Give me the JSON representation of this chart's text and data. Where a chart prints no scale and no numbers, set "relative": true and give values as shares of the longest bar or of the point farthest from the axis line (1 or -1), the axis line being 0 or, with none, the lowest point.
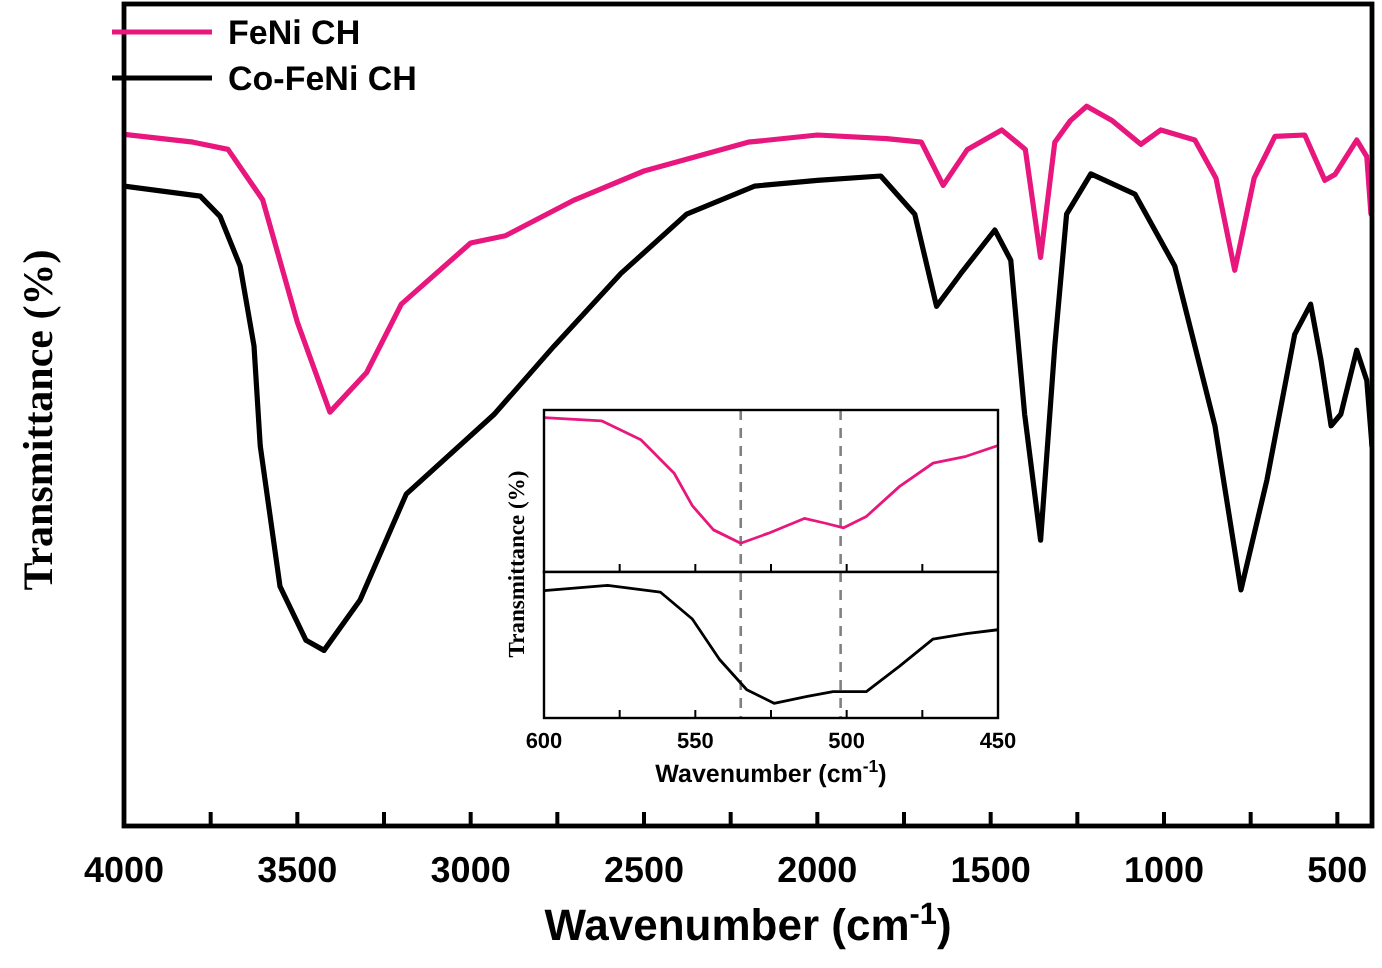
{
  "chart_data": [
    {
      "type": "line",
      "xlabel": "Wavenumber (cm$^{-1}$)",
      "ylabel": "Transmittance (%)",
      "relative": true,
      "legend": "top left",
      "tick_labels": "x",
      "xlim": [
        4000,
        400
      ],
      "xticks": [
        4000,
        {
          "value": 3750,
          "label": null
        },
        3500,
        {
          "value": 3250,
          "label": null
        },
        3000,
        {
          "value": 2750,
          "label": null
        },
        2500,
        {
          "value": 2250,
          "label": null
        },
        2000,
        {
          "value": 1750,
          "label": null
        },
        1500,
        {
          "value": 1250,
          "label": null
        },
        1000,
        {
          "value": 750,
          "label": null
        },
        500
      ],
      "series": [
        {
          "name": "FeNi CH",
          "color": "#e8177e",
          "x": [
            4000,
            3800,
            3700,
            3600,
            3500,
            3406,
            3300,
            3200,
            3000,
            2900,
            2700,
            2500,
            2200,
            2000,
            1800,
            1700,
            1637,
            1567,
            1468,
            1400,
            1356,
            1315,
            1270,
            1223,
            1150,
            1067,
            1009,
            911,
            850,
            796,
            740,
            680,
            594,
            536,
            507,
            444,
            415,
            403
          ],
          "values": [
            0.961,
            0.95,
            0.94,
            0.87,
            0.7,
            0.575,
            0.63,
            0.725,
            0.81,
            0.82,
            0.87,
            0.91,
            0.95,
            0.96,
            0.955,
            0.95,
            0.89,
            0.94,
            0.967,
            0.94,
            0.79,
            0.95,
            0.98,
            1.0,
            0.98,
            0.947,
            0.967,
            0.953,
            0.9,
            0.772,
            0.9,
            0.958,
            0.96,
            0.897,
            0.905,
            0.953,
            0.93,
            0.85
          ]
        },
        {
          "name": "Co-FeNi CH",
          "color": "#000000",
          "x": [
            4000,
            3780,
            3723,
            3665,
            3625,
            3607,
            3550,
            3475,
            3423,
            3319,
            3186,
            2932,
            2759,
            2568,
            2377,
            2181,
            2000,
            1817,
            1719,
            1656,
            1587,
            1488,
            1442,
            1402,
            1356,
            1315,
            1281,
            1211,
            1084,
            969,
            853,
            778,
            703,
            623,
            577,
            547,
            518,
            490,
            444,
            415,
            400
          ],
          "values": [
            0.889,
            0.875,
            0.847,
            0.778,
            0.667,
            0.528,
            0.333,
            0.258,
            0.244,
            0.314,
            0.461,
            0.572,
            0.667,
            0.767,
            0.85,
            0.889,
            0.897,
            0.903,
            0.85,
            0.722,
            0.767,
            0.828,
            0.786,
            0.572,
            0.397,
            0.667,
            0.85,
            0.906,
            0.878,
            0.778,
            0.556,
            0.328,
            0.481,
            0.683,
            0.725,
            0.647,
            0.556,
            0.572,
            0.661,
            0.619,
            0.528
          ]
        }
      ]
    },
    {
      "type": "line",
      "ylabel": "Transmittance (%)",
      "relative": true,
      "tick_labels": false,
      "xlim": [
        600,
        450
      ],
      "xticks": [
        600,
        {
          "value": 575,
          "label": null
        },
        550,
        {
          "value": 525,
          "label": null
        },
        500,
        {
          "value": 475,
          "label": null
        },
        450
      ],
      "ref_lines": [
        {
          "axis": "x",
          "value": 535,
          "color": "#808080",
          "line_style": "dashed"
        },
        {
          "axis": "x",
          "value": 502,
          "color": "#808080",
          "line_style": "dashed"
        }
      ],
      "series": [
        {
          "color": "#e8177e",
          "x": [
            600,
            581,
            568,
            557,
            551,
            544,
            535,
            526,
            514,
            507,
            501,
            493.5,
            482.5,
            471.5,
            460.5,
            450
          ],
          "values": [
            1.0,
            0.98,
            0.857,
            0.64,
            0.43,
            0.273,
            0.186,
            0.25,
            0.347,
            0.316,
            0.286,
            0.36,
            0.555,
            0.705,
            0.75,
            0.82
          ]
        }
      ]
    },
    {
      "type": "line",
      "xlabel": "Wavenumber (cm$^{-1}$)",
      "relative": true,
      "tick_labels": "x",
      "xlim": [
        600,
        450
      ],
      "xticks": [
        600,
        {
          "value": 575,
          "label": null
        },
        550,
        {
          "value": 525,
          "label": null
        },
        500,
        {
          "value": 475,
          "label": null
        },
        450
      ],
      "ref_lines": [
        {
          "axis": "x",
          "value": 535,
          "color": "#808080",
          "line_style": "dashed"
        },
        {
          "axis": "x",
          "value": 502,
          "color": "#808080",
          "line_style": "dashed"
        }
      ],
      "series": [
        {
          "color": "#000000",
          "x": [
            600,
            579,
            561.6,
            551,
            542,
            533,
            524,
            513,
            504.5,
            493.5,
            482.5,
            471.5,
            460.5,
            450
          ],
          "values": [
            0.959,
            1.0,
            0.949,
            0.746,
            0.441,
            0.213,
            0.111,
            0.163,
            0.198,
            0.198,
            0.391,
            0.594,
            0.635,
            0.665
          ]
        }
      ]
    }
  ]
}
